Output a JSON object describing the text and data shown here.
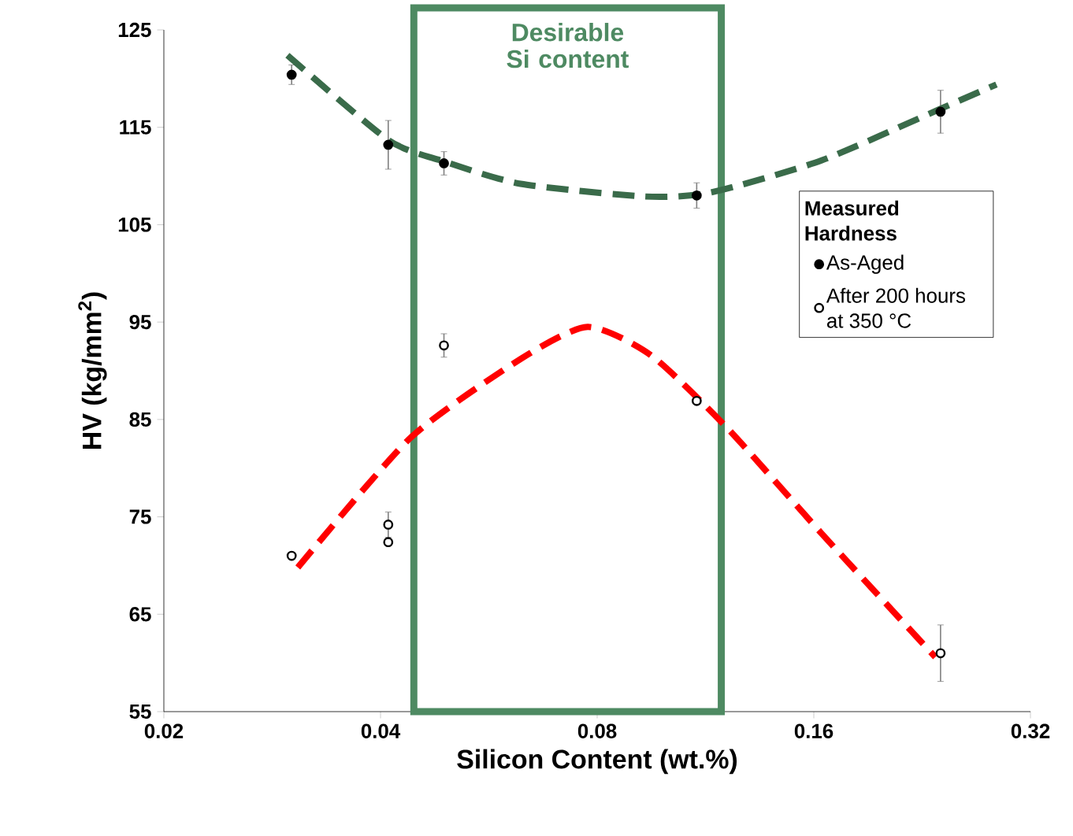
{
  "chart_data": {
    "type": "scatter",
    "xlabel": "Silicon Content (wt.%)",
    "ylabel": "HV (kg/mm$^{2}$)",
    "legend_title": "Measured Hardness",
    "log": "x",
    "xlim": [
      0.02,
      0.32
    ],
    "xticks": [
      0.02,
      0.04,
      0.08,
      0.16,
      0.32
    ],
    "ylim": [
      55,
      125
    ],
    "yticks": [
      55,
      65,
      75,
      85,
      95,
      105,
      115,
      125
    ],
    "grid": false,
    "legend": "right",
    "marker": "circle",
    "bands": [
      {
        "axis": "x",
        "from": 0.0445,
        "to": 0.119,
        "label": "Desirable Si content",
        "color": "#4e8a62"
      }
    ],
    "series": [
      {
        "name": "As-Aged",
        "color": "#000000",
        "x": [
          0.0301,
          0.041,
          0.049,
          0.11,
          0.24
        ],
        "values": [
          120.4,
          113.2,
          111.3,
          108.0,
          116.6
        ],
        "errors": [
          1.0,
          2.5,
          1.2,
          1.3,
          2.2
        ]
      },
      {
        "name": "After 200 hours at 350 °C",
        "color": "#ffffff",
        "x": [
          0.0301,
          0.041,
          0.041,
          0.049,
          0.11,
          0.24
        ],
        "values": [
          71.0,
          74.2,
          72.4,
          92.6,
          86.9,
          61.0
        ],
        "errors": [
          null,
          1.3,
          null,
          1.2,
          null,
          2.9
        ]
      },
      {
        "type": "line",
        "color": "#3a6b4a",
        "marker": "none",
        "line_style": "dashed",
        "x": [
          0.0297,
          0.041,
          0.049,
          0.0626,
          0.0929,
          0.115,
          0.164,
          0.24,
          0.287
        ],
        "values": [
          122.4,
          113.7,
          111.5,
          109.2,
          107.9,
          108.3,
          111.6,
          116.9,
          119.4
        ]
      },
      {
        "type": "line",
        "color": "#ff0000",
        "marker": "none",
        "line_style": "dashed",
        "x": [
          0.0307,
          0.044,
          0.0626,
          0.0776,
          0.095,
          0.121,
          0.164,
          0.236
        ],
        "values": [
          69.8,
          83.1,
          91.2,
          94.5,
          91.6,
          84.2,
          73.3,
          60.6
        ]
      }
    ]
  }
}
